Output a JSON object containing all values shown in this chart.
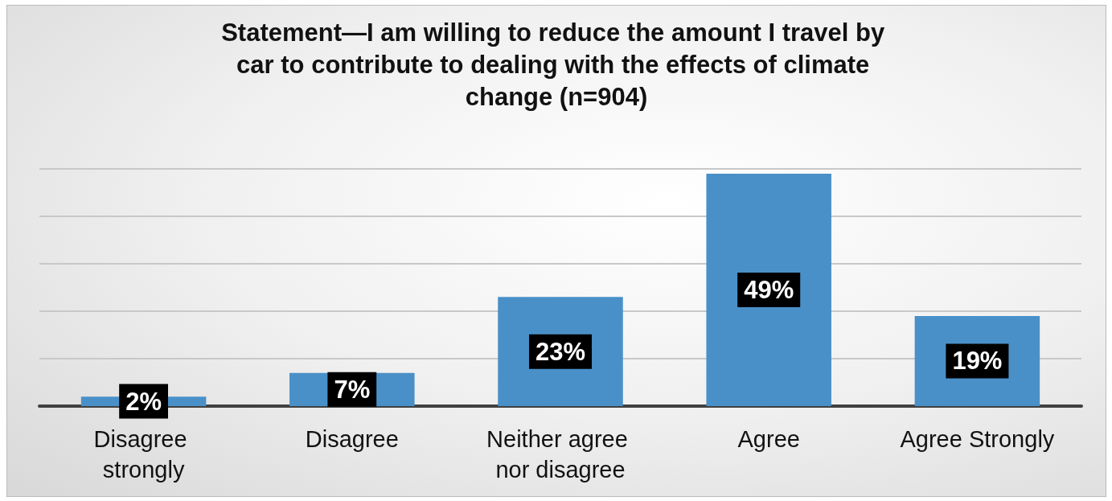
{
  "chart_data": {
    "type": "bar",
    "title": "Statement—I am willing to reduce the amount I travel by car to contribute to dealing with the effects of climate change (n=904)",
    "categories": [
      "Disagree strongly",
      "Disagree",
      "Neither agree nor disagree",
      "Agree",
      "Agree Strongly"
    ],
    "values": [
      2,
      7,
      23,
      49,
      19
    ],
    "value_labels": [
      "2%",
      "7%",
      "23%",
      "49%",
      "19%"
    ],
    "color": "#4a90c8",
    "tick_labels": "x",
    "grid": "y"
  }
}
